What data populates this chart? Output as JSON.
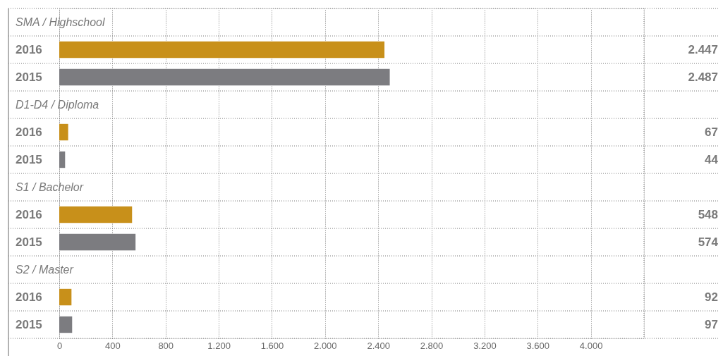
{
  "chart_data": {
    "type": "bar",
    "orientation": "horizontal",
    "categories": [
      "SMA / Highschool",
      "2016",
      "2015",
      "D1-D4 / Diploma",
      "2016",
      "2015",
      "S1 / Bachelor",
      "2016",
      "2015",
      "S2 / Master",
      "2016",
      "2015"
    ],
    "values": [
      null,
      2447,
      2487,
      null,
      67,
      44,
      null,
      548,
      574,
      null,
      92,
      97
    ],
    "colors": [
      null,
      "#c8901a",
      "#7c7c80",
      null,
      "#c8901a",
      "#7c7c80",
      null,
      "#c8901a",
      "#7c7c80",
      null,
      "#c8901a",
      "#7c7c80"
    ],
    "value_labels": [
      null,
      "2.447",
      "2.487",
      null,
      "67",
      "44",
      null,
      "548",
      "574",
      null,
      "92",
      "97"
    ],
    "xlim": [
      0,
      4400
    ],
    "xticks": [
      0,
      400,
      {
        "value": 800,
        "label": "800"
      },
      {
        "value": 1200,
        "label": "1.200"
      },
      {
        "value": 1600,
        "label": "1.600"
      },
      {
        "value": 2000,
        "label": "2.000"
      },
      {
        "value": 2400,
        "label": "2.400"
      },
      {
        "value": 2800,
        "label": "2.800"
      },
      {
        "value": 3200,
        "label": "3.200"
      },
      {
        "value": 3600,
        "label": "3.600"
      },
      {
        "value": 4000,
        "label": "4.000"
      }
    ],
    "grid": true
  }
}
